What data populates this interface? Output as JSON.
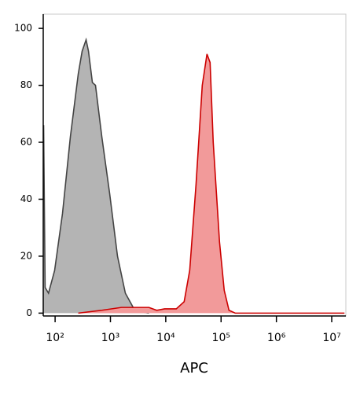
{
  "chart_data": {
    "type": "area",
    "x_label": "APC",
    "x_scale": "log",
    "xlim": [
      61,
      18000000
    ],
    "ylim": [
      -1,
      105
    ],
    "xticks": [
      {
        "value": 100,
        "label": "10²"
      },
      {
        "value": 1000,
        "label": "10³"
      },
      {
        "value": 10000,
        "label": "10⁴"
      },
      {
        "value": 100000,
        "label": "10⁵"
      },
      {
        "value": 1000000,
        "label": "10⁶"
      },
      {
        "value": 10000000,
        "label": "10⁷"
      }
    ],
    "yticks": [
      0,
      20,
      40,
      60,
      80,
      100
    ],
    "series": [
      {
        "color": "#444444",
        "fill": "#b4b4b4",
        "x": [
          62,
          66,
          76,
          98,
          136,
          189,
          262,
          308,
          363,
          401,
          472,
          537,
          698,
          968,
          1342,
          1861,
          2578,
          3575,
          4955
        ],
        "values": [
          66,
          9,
          7,
          15,
          35,
          62,
          84,
          92,
          96,
          92,
          81,
          80,
          62,
          42,
          20,
          7,
          2,
          0.5,
          0
        ]
      },
      {
        "color": "#cc0000",
        "fill": "#f29a9a",
        "x": [
          262,
          698,
          1581,
          4955,
          6870,
          9530,
          15500,
          21500,
          27100,
          35200,
          45700,
          55600,
          63300,
          72100,
          93700,
          114000,
          139000,
          180000,
          17000000
        ],
        "values": [
          0,
          1,
          2,
          2,
          1,
          1.5,
          1.5,
          4,
          15,
          45,
          80,
          91,
          88,
          60,
          25,
          8,
          1,
          0,
          0
        ]
      }
    ]
  }
}
